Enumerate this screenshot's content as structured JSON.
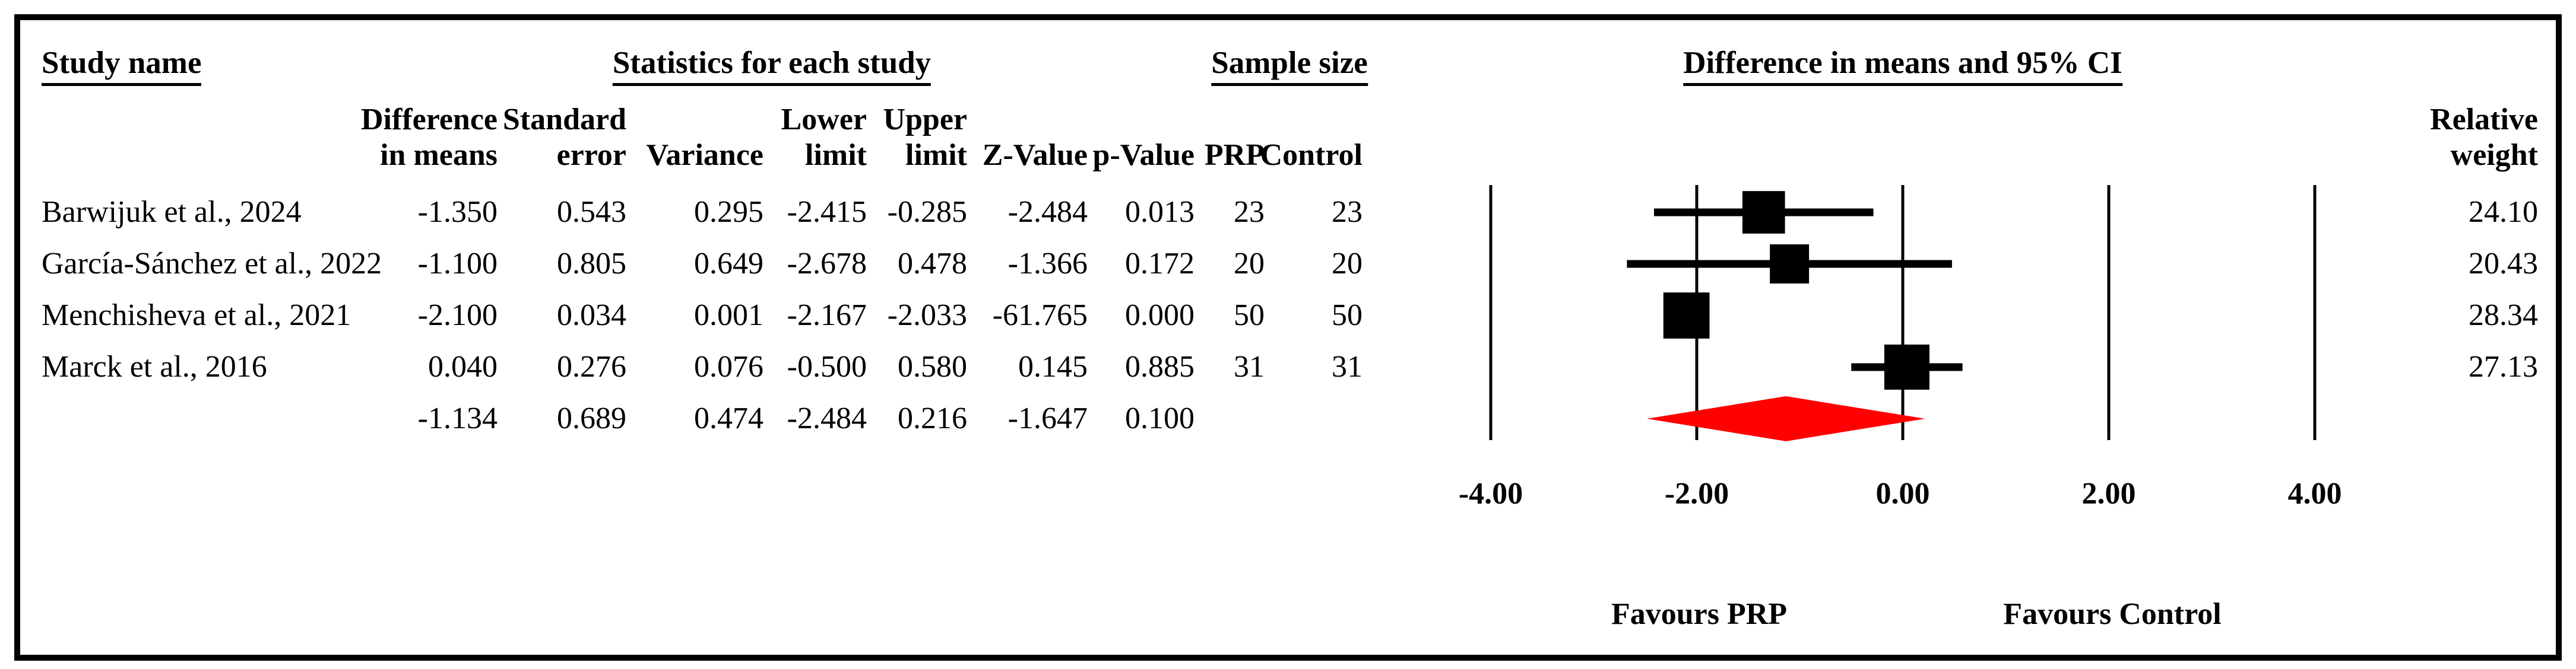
{
  "figure": {
    "background": "#ffffff",
    "border_color": "#000000"
  },
  "headers": {
    "study_name": "Study name",
    "statistics": "Statistics for each study",
    "sample_size": "Sample size",
    "ci_title": "Difference in means and 95% CI",
    "relative_weight_line1": "Relative",
    "relative_weight_line2": "weight"
  },
  "columns": {
    "diff_line1": "Difference",
    "diff_line2": "in means",
    "se_line1": "Standard",
    "se_line2": "error",
    "variance": "Variance",
    "lower_line1": "Lower",
    "lower_line2": "limit",
    "upper_line1": "Upper",
    "upper_line2": "limit",
    "z_value": "Z-Value",
    "p_value": "p-Value",
    "prp": "PRP",
    "control": "Control"
  },
  "chart_data": {
    "type": "forest",
    "title": "Difference in means and 95% CI",
    "xlabel": "Difference in means",
    "axis": {
      "tick_labels": [
        "-4.00",
        "-2.00",
        "0.00",
        "2.00",
        "4.00"
      ],
      "tick_values": [
        -4,
        -2,
        0,
        2,
        4
      ],
      "xlim": [
        -4,
        4
      ],
      "grid": "vertical-lines"
    },
    "footer_labels": {
      "left": "Favours PRP",
      "right": "Favours Control"
    },
    "colors": {
      "study_marker": "#000000",
      "summary_diamond": "#ff0000",
      "gridline": "#000000"
    },
    "studies": [
      {
        "name": "Barwijuk et al., 2024",
        "cells": [
          "-1.350",
          "0.543",
          "0.295",
          "-2.415",
          "-0.285",
          "-2.484",
          "0.013",
          "23",
          "23"
        ],
        "mean": -1.35,
        "lower": -2.415,
        "upper": -0.285,
        "weight": 24.1,
        "weight_label": "24.10"
      },
      {
        "name": "García-Sánchez et al., 2022",
        "cells": [
          "-1.100",
          "0.805",
          "0.649",
          "-2.678",
          "0.478",
          "-1.366",
          "0.172",
          "20",
          "20"
        ],
        "mean": -1.1,
        "lower": -2.678,
        "upper": 0.478,
        "weight": 20.43,
        "weight_label": "20.43"
      },
      {
        "name": "Menchisheva et al., 2021",
        "cells": [
          "-2.100",
          "0.034",
          "0.001",
          "-2.167",
          "-2.033",
          "-61.765",
          "0.000",
          "50",
          "50"
        ],
        "mean": -2.1,
        "lower": -2.167,
        "upper": -2.033,
        "weight": 28.34,
        "weight_label": "28.34"
      },
      {
        "name": "Marck et al., 2016",
        "cells": [
          "0.040",
          "0.276",
          "0.076",
          "-0.500",
          "0.580",
          "0.145",
          "0.885",
          "31",
          "31"
        ],
        "mean": 0.04,
        "lower": -0.5,
        "upper": 0.58,
        "weight": 27.13,
        "weight_label": "27.13"
      }
    ],
    "summary": {
      "cells": [
        "-1.134",
        "0.689",
        "0.474",
        "-2.484",
        "0.216",
        "-1.647",
        "0.100"
      ],
      "mean": -1.134,
      "lower": -2.484,
      "upper": 0.216
    }
  }
}
